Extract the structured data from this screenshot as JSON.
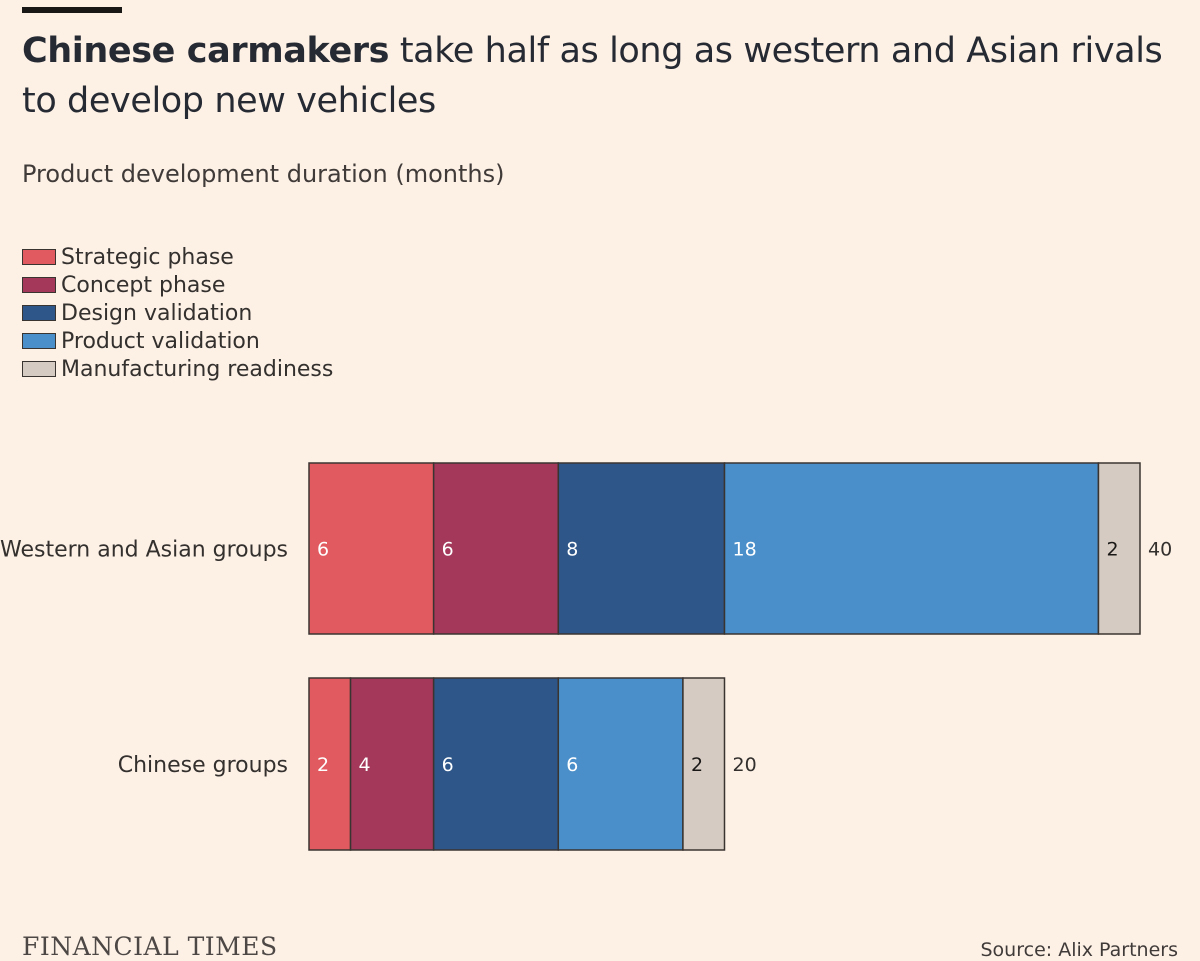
{
  "header": {
    "title_bold": "Chinese carmakers",
    "title_rest": " take half as long as western and Asian rivals to develop new vehicles",
    "subtitle": "Product development duration (months)"
  },
  "legend": [
    {
      "label": "Strategic phase",
      "color": "#e05a60"
    },
    {
      "label": "Concept phase",
      "color": "#a3385a"
    },
    {
      "label": "Design validation",
      "color": "#2f5688"
    },
    {
      "label": "Product validation",
      "color": "#4a8fca"
    },
    {
      "label": "Manufacturing readiness",
      "color": "#d6cbc2"
    }
  ],
  "chart_data": {
    "type": "bar",
    "orientation": "horizontal",
    "stacked": true,
    "categories": [
      "Western and Asian groups",
      "Chinese groups"
    ],
    "series": [
      {
        "name": "Strategic phase",
        "values": [
          6,
          2
        ],
        "color": "#e05a60"
      },
      {
        "name": "Concept phase",
        "values": [
          6,
          4
        ],
        "color": "#a3385a"
      },
      {
        "name": "Design validation",
        "values": [
          8,
          6
        ],
        "color": "#2f5688"
      },
      {
        "name": "Product validation",
        "values": [
          18,
          6
        ],
        "color": "#4a8fca"
      },
      {
        "name": "Manufacturing readiness",
        "values": [
          2,
          2
        ],
        "color": "#d6cbc2"
      }
    ],
    "totals": [
      40,
      20
    ],
    "xlim": [
      0,
      40
    ],
    "unit": "months"
  },
  "footer": {
    "logo": "FINANCIAL TIMES",
    "source": "Source: Alix Partners"
  }
}
